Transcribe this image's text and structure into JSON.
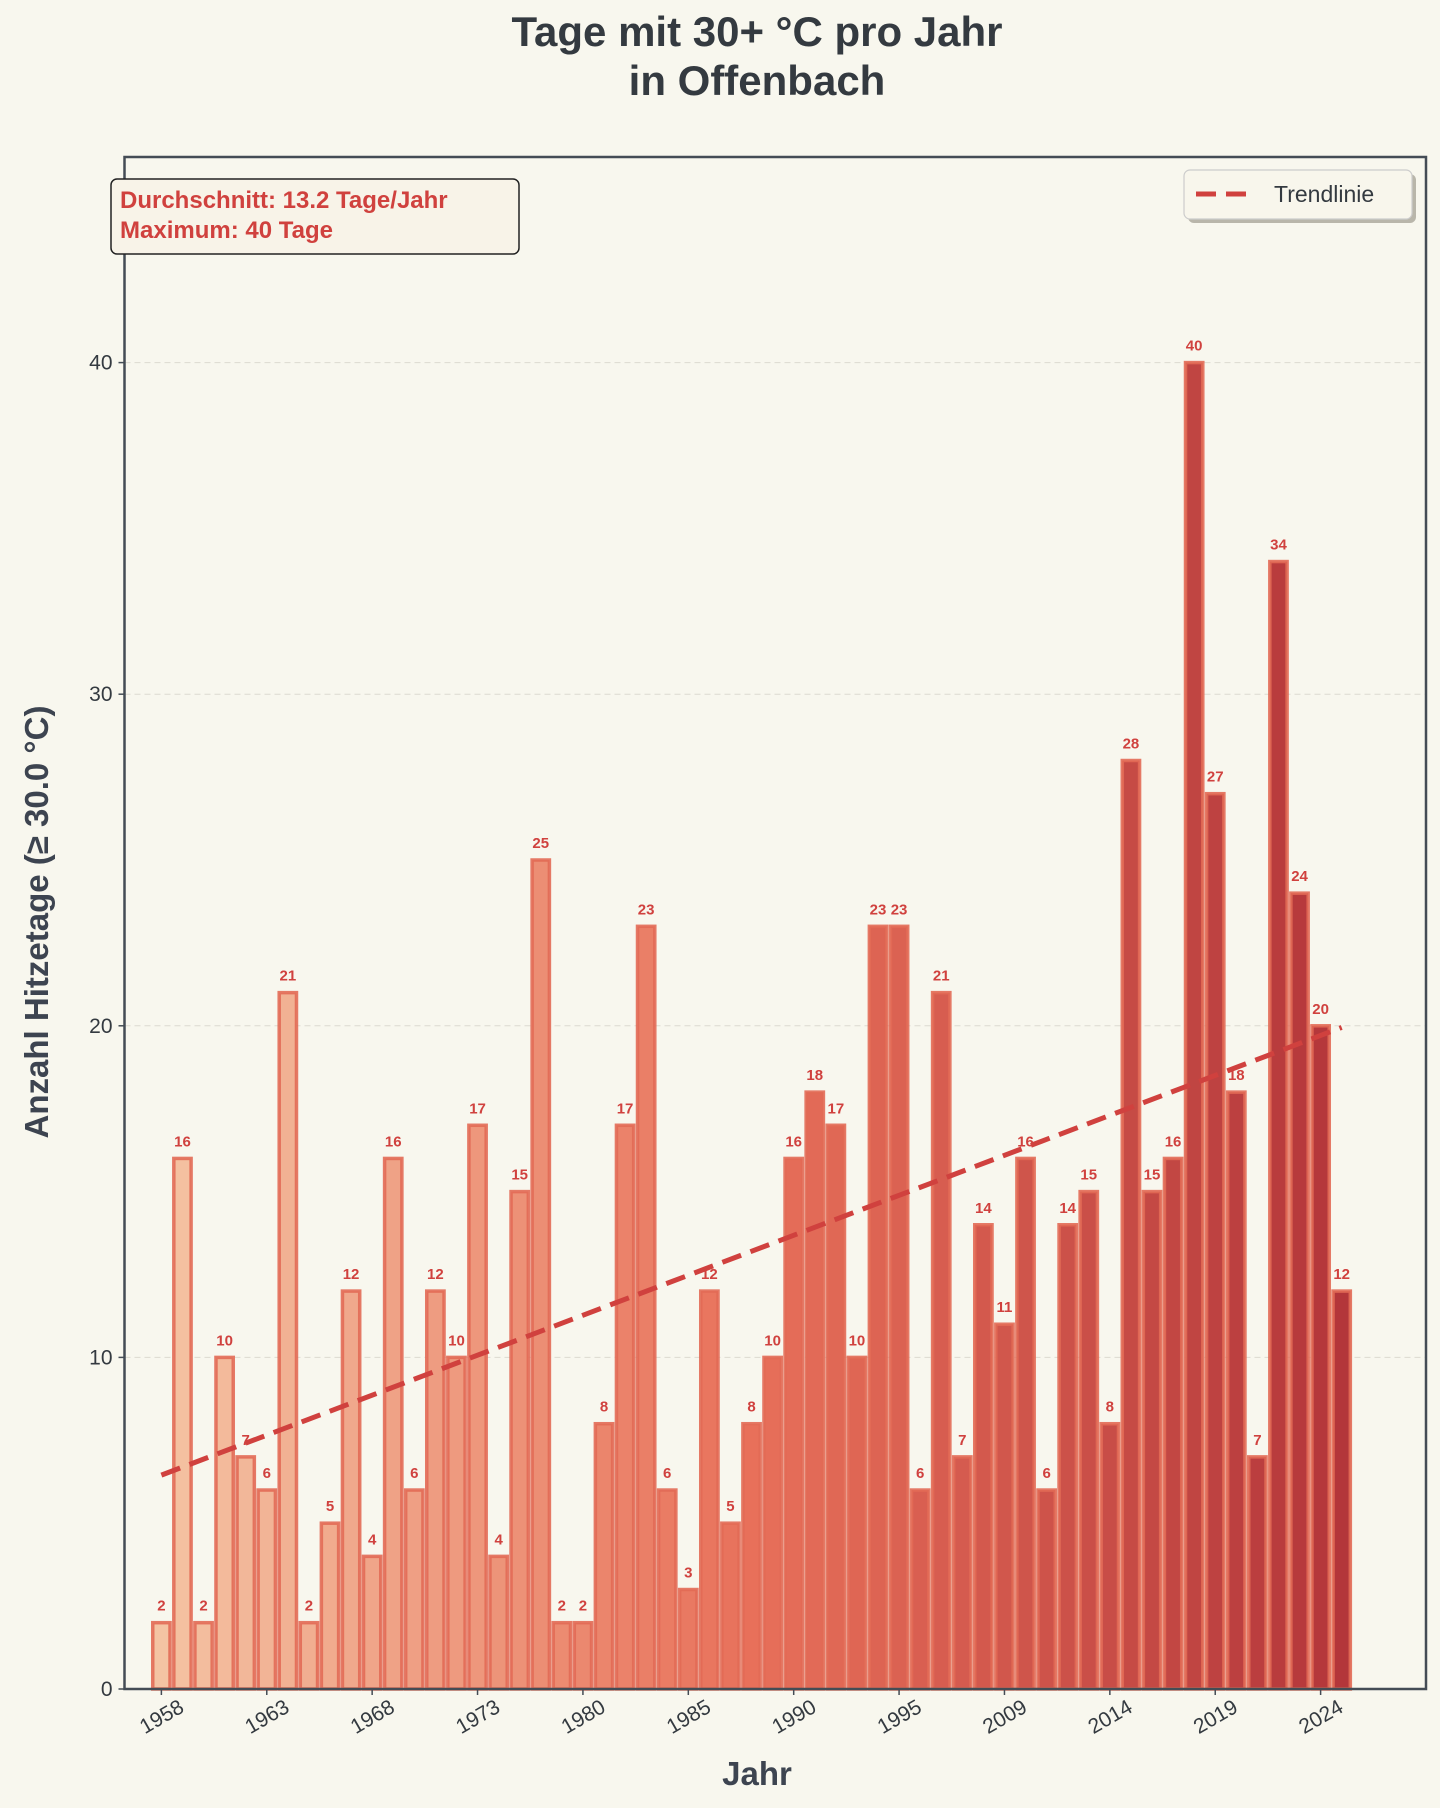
{
  "chart_data": {
    "type": "bar",
    "title_lines": [
      "Tage mit 30+ °C pro Jahr",
      "in Offenbach"
    ],
    "xlabel": "Jahr",
    "ylabel": "Anzahl Hitzetage (≥ 30.0 °C)",
    "values": [
      2,
      16,
      2,
      10,
      7,
      6,
      21,
      2,
      5,
      12,
      4,
      16,
      6,
      12,
      10,
      17,
      4,
      15,
      25,
      2,
      2,
      8,
      17,
      23,
      6,
      3,
      12,
      5,
      8,
      10,
      16,
      18,
      17,
      10,
      23,
      23,
      6,
      21,
      7,
      14,
      11,
      16,
      6,
      14,
      15,
      8,
      28,
      15,
      16,
      40,
      27,
      18,
      7,
      34,
      24,
      20,
      12
    ],
    "x_ticks": [
      {
        "bar_index": 0,
        "label": "1958"
      },
      {
        "bar_index": 5,
        "label": "1963"
      },
      {
        "bar_index": 10,
        "label": "1968"
      },
      {
        "bar_index": 15,
        "label": "1973"
      },
      {
        "bar_index": 20,
        "label": "1980"
      },
      {
        "bar_index": 25,
        "label": "1985"
      },
      {
        "bar_index": 30,
        "label": "1990"
      },
      {
        "bar_index": 35,
        "label": "1995"
      },
      {
        "bar_index": 40,
        "label": "2009"
      },
      {
        "bar_index": 45,
        "label": "2014"
      },
      {
        "bar_index": 50,
        "label": "2019"
      },
      {
        "bar_index": 55,
        "label": "2024"
      }
    ],
    "y_ticks": [
      0,
      10,
      20,
      30,
      40
    ],
    "ylim": [
      0,
      46.2
    ],
    "grid": true,
    "trendline": {
      "name": "Trendlinie",
      "start": 6.45,
      "end": 19.95,
      "color": "#d0413e",
      "style": "dashed"
    },
    "legend": {
      "position": "top-right",
      "entries": [
        "Trendlinie"
      ]
    },
    "annotation": {
      "position": "top-left",
      "lines": [
        "Durchschnitt: 13.2 Tage/Jahr",
        "Maximum: 40 Tage"
      ]
    },
    "colors": {
      "bar_gradient_start": "#f4c3a3",
      "bar_gradient_mid": "#e8705a",
      "bar_gradient_end": "#b3363a",
      "bar_edge": "#e26a55",
      "value_label": "#d0413e",
      "background": "#f8f7ee",
      "frame": "#444c55"
    }
  }
}
